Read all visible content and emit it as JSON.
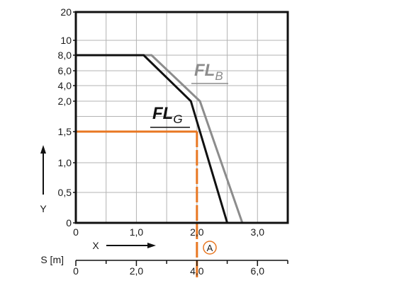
{
  "chart_data": {
    "type": "line",
    "xlabel": "X",
    "ylabel": "Y",
    "xlim": [
      0,
      3.5
    ],
    "x_ticks": [
      "0",
      "1,0",
      "2,0",
      "3,0"
    ],
    "x_tick_values": [
      0,
      1.0,
      2.0,
      3.0
    ],
    "y_ticks": [
      "0",
      "0,5",
      "1,0",
      "1,5",
      "2,0",
      "4,0",
      "6,0",
      "8,0",
      "10",
      "20"
    ],
    "y_scale": "non-uniform",
    "grid": true,
    "secondary_x_axis": {
      "label": "S [m]",
      "ticks": [
        "0",
        "2,0",
        "4,0",
        "6,0"
      ],
      "tick_values": [
        0,
        2.0,
        4.0,
        6.0
      ]
    },
    "series": [
      {
        "name": "FL",
        "subscript": "B",
        "color": "#8c8c8c",
        "points": [
          {
            "x": 0,
            "y": 8.0
          },
          {
            "x": 1.25,
            "y": 8.0
          },
          {
            "x": 2.05,
            "y": 2.0
          },
          {
            "x": 2.75,
            "y": 0
          }
        ]
      },
      {
        "name": "FL",
        "subscript": "G",
        "color": "#111111",
        "points": [
          {
            "x": 0,
            "y": 8.0
          },
          {
            "x": 1.12,
            "y": 8.0
          },
          {
            "x": 1.9,
            "y": 2.0
          },
          {
            "x": 2.5,
            "y": 0
          }
        ]
      }
    ],
    "annotations": [
      {
        "type": "reference_line",
        "color": "#e87722",
        "from": {
          "x": 0,
          "y": 1.5
        },
        "corner": {
          "x": 2.0,
          "y": 1.5
        },
        "to_secondary_x": 4.0,
        "marker_label": "A"
      }
    ]
  }
}
